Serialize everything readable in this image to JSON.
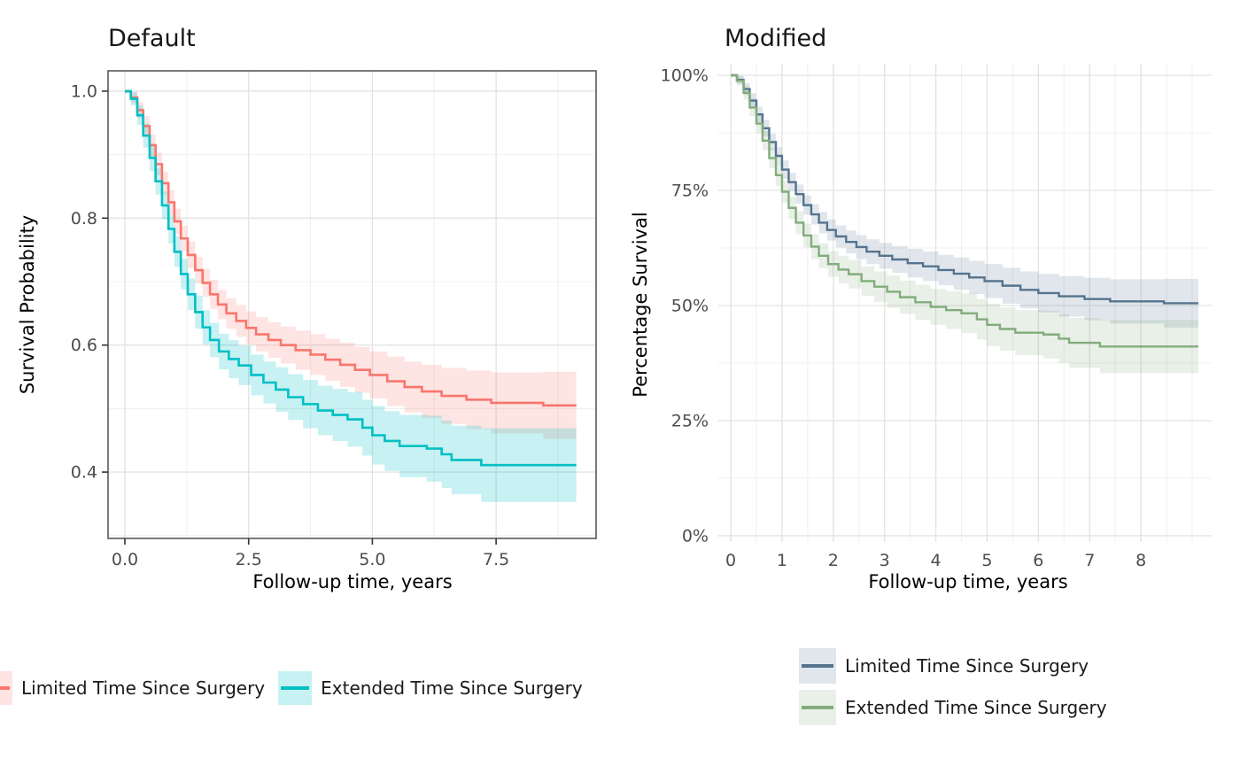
{
  "figure": {
    "background": "#ffffff",
    "text_color_ticks": "#4d4d4d",
    "grid_major_color": "#e3e3e3",
    "grid_minor_color": "#f0f0f0",
    "panel_border_color": "#595959"
  },
  "chart_data": [
    {
      "id": "default",
      "type": "line",
      "subtype": "kaplan_meier_step_with_ci",
      "title": "Default",
      "xlabel": "Follow-up time, years",
      "ylabel": "Survival Probability",
      "xlim": [
        -0.34,
        9.52
      ],
      "ylim": [
        0.2955,
        1.032
      ],
      "x_ticks": [
        0,
        2.5,
        5,
        7.5
      ],
      "x_tick_labels": [
        "0.0",
        "2.5",
        "5.0",
        "7.5"
      ],
      "x_minor_ticks": [
        1.25,
        3.75,
        6.25,
        8.75
      ],
      "y_ticks": [
        0.4,
        0.6,
        0.8,
        1.0
      ],
      "y_tick_labels": [
        "0.4",
        "0.6",
        "0.8",
        "1.0"
      ],
      "y_minor_ticks": [
        0.3,
        0.5,
        0.7,
        0.9
      ],
      "grid": "major+minor",
      "panel_border": true,
      "axis_ticks_visible": true,
      "legend_position": "bottom-horizontal",
      "series": [
        {
          "name": "Limited Time Since Surgery",
          "color": "#F8766D",
          "band_color": "rgba(248,118,109,0.2)",
          "points": [
            [
              0,
              1.0
            ],
            [
              0.12,
              0.99
            ],
            [
              0.25,
              0.97
            ],
            [
              0.37,
              0.945
            ],
            [
              0.5,
              0.915
            ],
            [
              0.62,
              0.885
            ],
            [
              0.75,
              0.855
            ],
            [
              0.88,
              0.825
            ],
            [
              1.0,
              0.795
            ],
            [
              1.13,
              0.768
            ],
            [
              1.27,
              0.742
            ],
            [
              1.42,
              0.718
            ],
            [
              1.57,
              0.698
            ],
            [
              1.72,
              0.68
            ],
            [
              1.88,
              0.664
            ],
            [
              2.05,
              0.65
            ],
            [
              2.25,
              0.638
            ],
            [
              2.45,
              0.627
            ],
            [
              2.65,
              0.617
            ],
            [
              2.9,
              0.608
            ],
            [
              3.15,
              0.6
            ],
            [
              3.45,
              0.592
            ],
            [
              3.75,
              0.585
            ],
            [
              4.05,
              0.577
            ],
            [
              4.35,
              0.569
            ],
            [
              4.65,
              0.561
            ],
            [
              4.95,
              0.553
            ],
            [
              5.3,
              0.543
            ],
            [
              5.65,
              0.534
            ],
            [
              6.0,
              0.527
            ],
            [
              6.4,
              0.52
            ],
            [
              6.9,
              0.514
            ],
            [
              7.4,
              0.509
            ],
            [
              8.45,
              0.505
            ],
            [
              9.12,
              0.505
            ]
          ],
          "ci_halfwidth": [
            0.003,
            0.009,
            0.013,
            0.016,
            0.017,
            0.018,
            0.018,
            0.019,
            0.02,
            0.02,
            0.021,
            0.021,
            0.022,
            0.023,
            0.023,
            0.024,
            0.025,
            0.026,
            0.027,
            0.028,
            0.029,
            0.031,
            0.032,
            0.033,
            0.035,
            0.036,
            0.037,
            0.039,
            0.04,
            0.042,
            0.044,
            0.046,
            0.048,
            0.053,
            0.054
          ]
        },
        {
          "name": "Extended Time Since Surgery",
          "color": "#00BFC4",
          "band_color": "rgba(0,191,196,0.22)",
          "points": [
            [
              0,
              1.0
            ],
            [
              0.12,
              0.988
            ],
            [
              0.25,
              0.962
            ],
            [
              0.37,
              0.93
            ],
            [
              0.5,
              0.895
            ],
            [
              0.62,
              0.858
            ],
            [
              0.75,
              0.82
            ],
            [
              0.88,
              0.783
            ],
            [
              1.0,
              0.747
            ],
            [
              1.13,
              0.712
            ],
            [
              1.27,
              0.68
            ],
            [
              1.42,
              0.652
            ],
            [
              1.57,
              0.628
            ],
            [
              1.72,
              0.608
            ],
            [
              1.9,
              0.59
            ],
            [
              2.1,
              0.578
            ],
            [
              2.3,
              0.568
            ],
            [
              2.55,
              0.553
            ],
            [
              2.8,
              0.541
            ],
            [
              3.05,
              0.53
            ],
            [
              3.3,
              0.518
            ],
            [
              3.6,
              0.507
            ],
            [
              3.9,
              0.497
            ],
            [
              4.2,
              0.49
            ],
            [
              4.5,
              0.483
            ],
            [
              4.8,
              0.47
            ],
            [
              5.0,
              0.458
            ],
            [
              5.25,
              0.449
            ],
            [
              5.55,
              0.441
            ],
            [
              6.1,
              0.437
            ],
            [
              6.4,
              0.428
            ],
            [
              6.6,
              0.419
            ],
            [
              7.2,
              0.411
            ],
            [
              9.12,
              0.411
            ]
          ],
          "ci_halfwidth": [
            0.003,
            0.01,
            0.015,
            0.019,
            0.021,
            0.021,
            0.022,
            0.023,
            0.024,
            0.024,
            0.025,
            0.026,
            0.027,
            0.027,
            0.028,
            0.03,
            0.031,
            0.032,
            0.033,
            0.035,
            0.036,
            0.038,
            0.039,
            0.041,
            0.043,
            0.044,
            0.046,
            0.047,
            0.049,
            0.052,
            0.053,
            0.054,
            0.058,
            0.062
          ]
        }
      ]
    },
    {
      "id": "modified",
      "type": "line",
      "subtype": "kaplan_meier_step_with_ci",
      "title": "Modified",
      "xlabel": "Follow-up time, years",
      "ylabel": "Percentage Survival",
      "xlim": [
        -0.26,
        9.38
      ],
      "ylim": [
        -0.0135,
        1.025
      ],
      "x_ticks": [
        0,
        1,
        2,
        3,
        4,
        5,
        6,
        7,
        8
      ],
      "x_tick_labels": [
        "0",
        "1",
        "2",
        "3",
        "4",
        "5",
        "6",
        "7",
        "8"
      ],
      "x_minor_ticks": [
        0.5,
        1.5,
        2.5,
        3.5,
        4.5,
        5.5,
        6.5,
        7.5,
        8.5,
        9.0
      ],
      "y_ticks": [
        0,
        0.25,
        0.5,
        0.75,
        1.0
      ],
      "y_tick_labels": [
        "0%",
        "25%",
        "50%",
        "75%",
        "100%"
      ],
      "y_minor_ticks": [
        0.125,
        0.375,
        0.625,
        0.875
      ],
      "grid": "major+minor",
      "panel_border": false,
      "axis_ticks_visible": false,
      "legend_position": "bottom-right-vertical",
      "series": [
        {
          "name": "Limited Time Since Surgery",
          "color": "#54738E",
          "band_color": "rgba(84,115,142,0.18)",
          "points": [
            [
              0,
              1.0
            ],
            [
              0.12,
              0.99
            ],
            [
              0.25,
              0.97
            ],
            [
              0.37,
              0.945
            ],
            [
              0.5,
              0.915
            ],
            [
              0.62,
              0.885
            ],
            [
              0.75,
              0.855
            ],
            [
              0.88,
              0.825
            ],
            [
              1.0,
              0.795
            ],
            [
              1.13,
              0.768
            ],
            [
              1.27,
              0.742
            ],
            [
              1.42,
              0.718
            ],
            [
              1.57,
              0.698
            ],
            [
              1.72,
              0.68
            ],
            [
              1.88,
              0.664
            ],
            [
              2.05,
              0.65
            ],
            [
              2.25,
              0.638
            ],
            [
              2.45,
              0.627
            ],
            [
              2.65,
              0.617
            ],
            [
              2.9,
              0.608
            ],
            [
              3.15,
              0.6
            ],
            [
              3.45,
              0.592
            ],
            [
              3.75,
              0.585
            ],
            [
              4.05,
              0.577
            ],
            [
              4.35,
              0.569
            ],
            [
              4.65,
              0.561
            ],
            [
              4.95,
              0.553
            ],
            [
              5.3,
              0.543
            ],
            [
              5.65,
              0.534
            ],
            [
              6.0,
              0.527
            ],
            [
              6.4,
              0.52
            ],
            [
              6.9,
              0.514
            ],
            [
              7.4,
              0.509
            ],
            [
              8.45,
              0.505
            ],
            [
              9.12,
              0.505
            ]
          ],
          "ci_halfwidth": [
            0.003,
            0.009,
            0.013,
            0.016,
            0.017,
            0.018,
            0.018,
            0.019,
            0.02,
            0.02,
            0.021,
            0.021,
            0.022,
            0.023,
            0.023,
            0.024,
            0.025,
            0.026,
            0.027,
            0.028,
            0.029,
            0.031,
            0.032,
            0.033,
            0.035,
            0.036,
            0.037,
            0.039,
            0.04,
            0.042,
            0.044,
            0.046,
            0.048,
            0.053,
            0.054
          ]
        },
        {
          "name": "Extended Time Since Surgery",
          "color": "#82AC7C",
          "band_color": "rgba(130,172,124,0.18)",
          "points": [
            [
              0,
              1.0
            ],
            [
              0.12,
              0.988
            ],
            [
              0.25,
              0.962
            ],
            [
              0.37,
              0.93
            ],
            [
              0.5,
              0.895
            ],
            [
              0.62,
              0.858
            ],
            [
              0.75,
              0.82
            ],
            [
              0.88,
              0.783
            ],
            [
              1.0,
              0.747
            ],
            [
              1.13,
              0.712
            ],
            [
              1.27,
              0.68
            ],
            [
              1.42,
              0.652
            ],
            [
              1.57,
              0.628
            ],
            [
              1.72,
              0.608
            ],
            [
              1.9,
              0.59
            ],
            [
              2.1,
              0.578
            ],
            [
              2.3,
              0.568
            ],
            [
              2.55,
              0.553
            ],
            [
              2.8,
              0.541
            ],
            [
              3.05,
              0.53
            ],
            [
              3.3,
              0.518
            ],
            [
              3.6,
              0.507
            ],
            [
              3.9,
              0.497
            ],
            [
              4.2,
              0.49
            ],
            [
              4.5,
              0.483
            ],
            [
              4.8,
              0.47
            ],
            [
              5.0,
              0.458
            ],
            [
              5.25,
              0.449
            ],
            [
              5.55,
              0.441
            ],
            [
              6.1,
              0.437
            ],
            [
              6.4,
              0.428
            ],
            [
              6.6,
              0.419
            ],
            [
              7.2,
              0.411
            ],
            [
              9.12,
              0.411
            ]
          ],
          "ci_halfwidth": [
            0.003,
            0.01,
            0.015,
            0.019,
            0.021,
            0.021,
            0.022,
            0.023,
            0.024,
            0.024,
            0.025,
            0.026,
            0.027,
            0.027,
            0.028,
            0.03,
            0.031,
            0.032,
            0.033,
            0.035,
            0.036,
            0.038,
            0.039,
            0.041,
            0.043,
            0.044,
            0.046,
            0.047,
            0.049,
            0.052,
            0.053,
            0.054,
            0.058,
            0.062
          ]
        }
      ]
    }
  ]
}
